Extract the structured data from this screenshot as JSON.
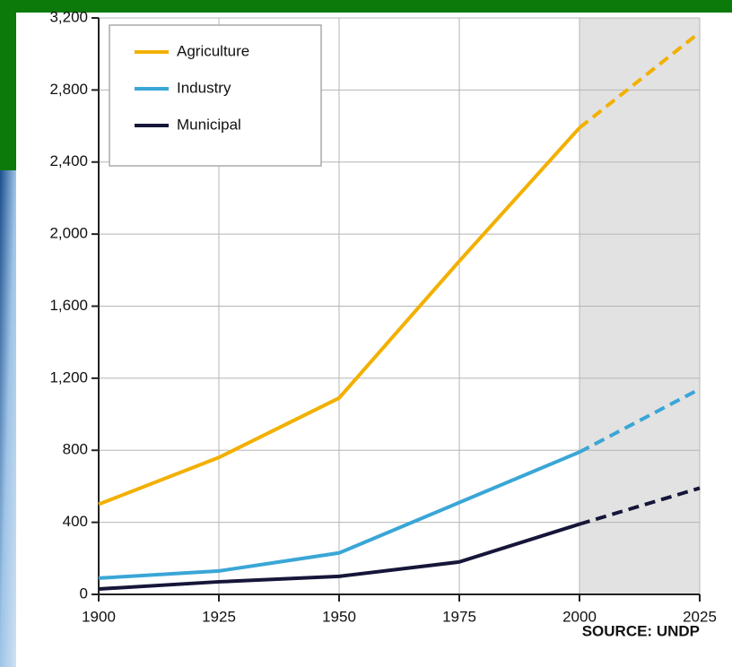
{
  "chart_data": {
    "type": "line",
    "x": [
      1900,
      1925,
      1950,
      1975,
      2000,
      2025
    ],
    "series": [
      {
        "name": "Agriculture",
        "color": "#f2b000",
        "values": [
          500,
          760,
          1090,
          1850,
          2590,
          3120
        ]
      },
      {
        "name": "Industry",
        "color": "#3aa6d6",
        "values": [
          90,
          130,
          230,
          510,
          790,
          1140
        ]
      },
      {
        "name": "Municipal",
        "color": "#16163a",
        "values": [
          30,
          70,
          100,
          180,
          390,
          590
        ]
      }
    ],
    "projection_start": 2000,
    "xlim": [
      1900,
      2025
    ],
    "xticks": [
      1900,
      1925,
      1950,
      1975,
      2000,
      2025
    ],
    "ylim": [
      0,
      3200
    ],
    "yticks": [
      0,
      {
        "value": 400,
        "label": "400"
      },
      {
        "value": 800,
        "label": "800"
      },
      {
        "value": 1200,
        "label": "1,200"
      },
      {
        "value": 1600,
        "label": "1,600"
      },
      {
        "value": 2000,
        "label": "2,000"
      },
      {
        "value": 2400,
        "label": "2,400"
      },
      {
        "value": 2800,
        "label": "2,800"
      },
      {
        "value": 3200,
        "label": "3,200"
      }
    ],
    "grid": true,
    "legend": "upper left",
    "source": "SOURCE: UNDP"
  }
}
